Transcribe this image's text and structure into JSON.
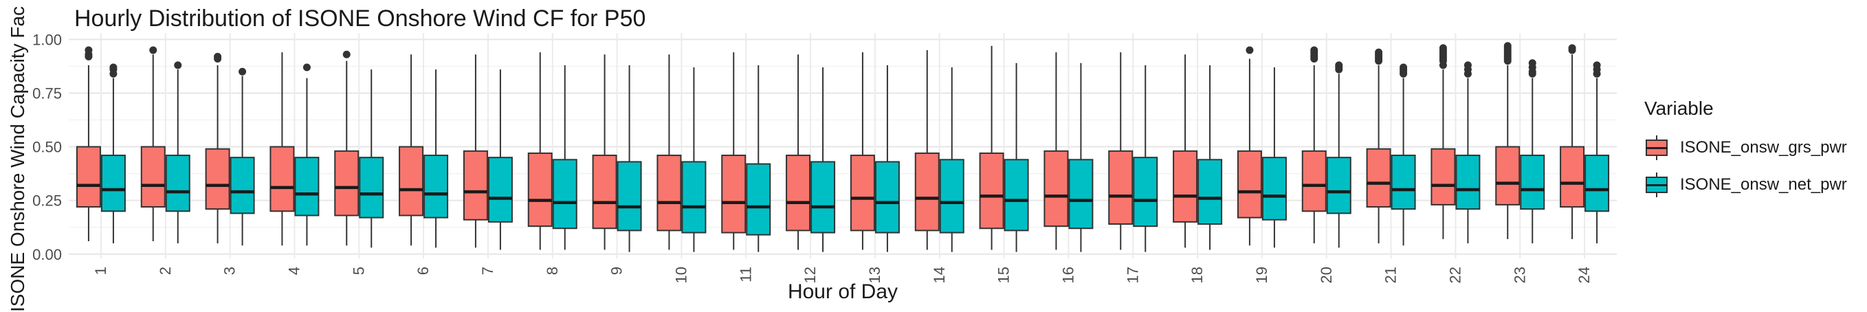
{
  "chart_data": {
    "type": "box",
    "title": "Hourly Distribution of ISONE Onshore Wind CF for P50",
    "xlabel": "Hour of Day",
    "ylabel": "ISONE Onshore Wind Capacity Fac",
    "ylim": [
      -0.02,
      1.03
    ],
    "yticks": [
      "0.00",
      "0.25",
      "0.50",
      "0.75",
      "1.00"
    ],
    "categories": [
      "1",
      "2",
      "3",
      "4",
      "5",
      "6",
      "7",
      "8",
      "9",
      "10",
      "11",
      "12",
      "13",
      "14",
      "15",
      "16",
      "17",
      "18",
      "19",
      "20",
      "21",
      "22",
      "23",
      "24"
    ],
    "legend": {
      "title": "Variable",
      "position": "right"
    },
    "grid": true,
    "series": [
      {
        "name": "ISONE_onsw_grs_pwr",
        "color": "#F8766D",
        "boxes": [
          {
            "min": 0.06,
            "q1": 0.22,
            "median": 0.32,
            "q3": 0.5,
            "max": 0.88,
            "outliers": [
              0.92,
              0.93,
              0.95
            ]
          },
          {
            "min": 0.06,
            "q1": 0.22,
            "median": 0.32,
            "q3": 0.5,
            "max": 0.93,
            "outliers": [
              0.95
            ]
          },
          {
            "min": 0.05,
            "q1": 0.21,
            "median": 0.32,
            "q3": 0.49,
            "max": 0.88,
            "outliers": [
              0.91,
              0.92
            ]
          },
          {
            "min": 0.04,
            "q1": 0.2,
            "median": 0.31,
            "q3": 0.5,
            "max": 0.94,
            "outliers": []
          },
          {
            "min": 0.04,
            "q1": 0.18,
            "median": 0.31,
            "q3": 0.48,
            "max": 0.9,
            "outliers": [
              0.93
            ]
          },
          {
            "min": 0.04,
            "q1": 0.18,
            "median": 0.3,
            "q3": 0.5,
            "max": 0.93,
            "outliers": []
          },
          {
            "min": 0.03,
            "q1": 0.16,
            "median": 0.29,
            "q3": 0.48,
            "max": 0.93,
            "outliers": []
          },
          {
            "min": 0.02,
            "q1": 0.13,
            "median": 0.25,
            "q3": 0.47,
            "max": 0.94,
            "outliers": []
          },
          {
            "min": 0.02,
            "q1": 0.12,
            "median": 0.24,
            "q3": 0.46,
            "max": 0.93,
            "outliers": []
          },
          {
            "min": 0.02,
            "q1": 0.11,
            "median": 0.24,
            "q3": 0.46,
            "max": 0.93,
            "outliers": []
          },
          {
            "min": 0.02,
            "q1": 0.1,
            "median": 0.24,
            "q3": 0.46,
            "max": 0.94,
            "outliers": []
          },
          {
            "min": 0.02,
            "q1": 0.11,
            "median": 0.24,
            "q3": 0.46,
            "max": 0.93,
            "outliers": []
          },
          {
            "min": 0.02,
            "q1": 0.11,
            "median": 0.26,
            "q3": 0.46,
            "max": 0.94,
            "outliers": []
          },
          {
            "min": 0.02,
            "q1": 0.11,
            "median": 0.26,
            "q3": 0.47,
            "max": 0.95,
            "outliers": []
          },
          {
            "min": 0.02,
            "q1": 0.12,
            "median": 0.27,
            "q3": 0.47,
            "max": 0.97,
            "outliers": []
          },
          {
            "min": 0.02,
            "q1": 0.13,
            "median": 0.27,
            "q3": 0.48,
            "max": 0.94,
            "outliers": []
          },
          {
            "min": 0.02,
            "q1": 0.14,
            "median": 0.27,
            "q3": 0.48,
            "max": 0.94,
            "outliers": []
          },
          {
            "min": 0.03,
            "q1": 0.15,
            "median": 0.27,
            "q3": 0.48,
            "max": 0.93,
            "outliers": []
          },
          {
            "min": 0.04,
            "q1": 0.17,
            "median": 0.29,
            "q3": 0.48,
            "max": 0.91,
            "outliers": [
              0.95
            ]
          },
          {
            "min": 0.05,
            "q1": 0.2,
            "median": 0.32,
            "q3": 0.48,
            "max": 0.88,
            "outliers": [
              0.91,
              0.92,
              0.93,
              0.94,
              0.95
            ]
          },
          {
            "min": 0.05,
            "q1": 0.22,
            "median": 0.33,
            "q3": 0.49,
            "max": 0.88,
            "outliers": [
              0.9,
              0.91,
              0.92,
              0.93,
              0.94
            ]
          },
          {
            "min": 0.07,
            "q1": 0.23,
            "median": 0.32,
            "q3": 0.49,
            "max": 0.86,
            "outliers": [
              0.88,
              0.9,
              0.91,
              0.92,
              0.93,
              0.94,
              0.95,
              0.96
            ]
          },
          {
            "min": 0.07,
            "q1": 0.23,
            "median": 0.33,
            "q3": 0.5,
            "max": 0.88,
            "outliers": [
              0.9,
              0.91,
              0.92,
              0.93,
              0.94,
              0.95,
              0.96,
              0.97
            ]
          },
          {
            "min": 0.07,
            "q1": 0.22,
            "median": 0.33,
            "q3": 0.5,
            "max": 0.93,
            "outliers": [
              0.95,
              0.96
            ]
          }
        ]
      },
      {
        "name": "ISONE_onsw_net_pwr",
        "color": "#00BFC4",
        "boxes": [
          {
            "min": 0.05,
            "q1": 0.2,
            "median": 0.3,
            "q3": 0.46,
            "max": 0.82,
            "outliers": [
              0.84,
              0.86,
              0.87
            ]
          },
          {
            "min": 0.05,
            "q1": 0.2,
            "median": 0.29,
            "q3": 0.46,
            "max": 0.86,
            "outliers": [
              0.88
            ]
          },
          {
            "min": 0.04,
            "q1": 0.19,
            "median": 0.29,
            "q3": 0.45,
            "max": 0.83,
            "outliers": [
              0.85
            ]
          },
          {
            "min": 0.04,
            "q1": 0.18,
            "median": 0.28,
            "q3": 0.45,
            "max": 0.82,
            "outliers": [
              0.87
            ]
          },
          {
            "min": 0.03,
            "q1": 0.17,
            "median": 0.28,
            "q3": 0.45,
            "max": 0.86,
            "outliers": []
          },
          {
            "min": 0.03,
            "q1": 0.17,
            "median": 0.28,
            "q3": 0.46,
            "max": 0.86,
            "outliers": []
          },
          {
            "min": 0.02,
            "q1": 0.15,
            "median": 0.26,
            "q3": 0.45,
            "max": 0.86,
            "outliers": []
          },
          {
            "min": 0.02,
            "q1": 0.12,
            "median": 0.24,
            "q3": 0.44,
            "max": 0.88,
            "outliers": []
          },
          {
            "min": 0.01,
            "q1": 0.11,
            "median": 0.22,
            "q3": 0.43,
            "max": 0.88,
            "outliers": []
          },
          {
            "min": 0.01,
            "q1": 0.1,
            "median": 0.22,
            "q3": 0.43,
            "max": 0.87,
            "outliers": []
          },
          {
            "min": 0.01,
            "q1": 0.09,
            "median": 0.22,
            "q3": 0.42,
            "max": 0.88,
            "outliers": []
          },
          {
            "min": 0.01,
            "q1": 0.1,
            "median": 0.22,
            "q3": 0.43,
            "max": 0.87,
            "outliers": []
          },
          {
            "min": 0.01,
            "q1": 0.1,
            "median": 0.24,
            "q3": 0.43,
            "max": 0.88,
            "outliers": []
          },
          {
            "min": 0.01,
            "q1": 0.1,
            "median": 0.24,
            "q3": 0.44,
            "max": 0.87,
            "outliers": []
          },
          {
            "min": 0.01,
            "q1": 0.11,
            "median": 0.25,
            "q3": 0.44,
            "max": 0.89,
            "outliers": []
          },
          {
            "min": 0.01,
            "q1": 0.12,
            "median": 0.25,
            "q3": 0.44,
            "max": 0.89,
            "outliers": []
          },
          {
            "min": 0.01,
            "q1": 0.13,
            "median": 0.25,
            "q3": 0.45,
            "max": 0.88,
            "outliers": []
          },
          {
            "min": 0.02,
            "q1": 0.14,
            "median": 0.26,
            "q3": 0.44,
            "max": 0.88,
            "outliers": []
          },
          {
            "min": 0.03,
            "q1": 0.16,
            "median": 0.27,
            "q3": 0.45,
            "max": 0.87,
            "outliers": []
          },
          {
            "min": 0.03,
            "q1": 0.19,
            "median": 0.29,
            "q3": 0.45,
            "max": 0.84,
            "outliers": [
              0.86,
              0.87,
              0.88
            ]
          },
          {
            "min": 0.04,
            "q1": 0.21,
            "median": 0.3,
            "q3": 0.46,
            "max": 0.82,
            "outliers": [
              0.84,
              0.85,
              0.86,
              0.87
            ]
          },
          {
            "min": 0.05,
            "q1": 0.21,
            "median": 0.3,
            "q3": 0.46,
            "max": 0.82,
            "outliers": [
              0.84,
              0.86,
              0.88
            ]
          },
          {
            "min": 0.05,
            "q1": 0.21,
            "median": 0.3,
            "q3": 0.46,
            "max": 0.82,
            "outliers": [
              0.84,
              0.85,
              0.87,
              0.89
            ]
          },
          {
            "min": 0.05,
            "q1": 0.2,
            "median": 0.3,
            "q3": 0.46,
            "max": 0.82,
            "outliers": [
              0.84,
              0.86,
              0.88
            ]
          }
        ]
      }
    ]
  }
}
